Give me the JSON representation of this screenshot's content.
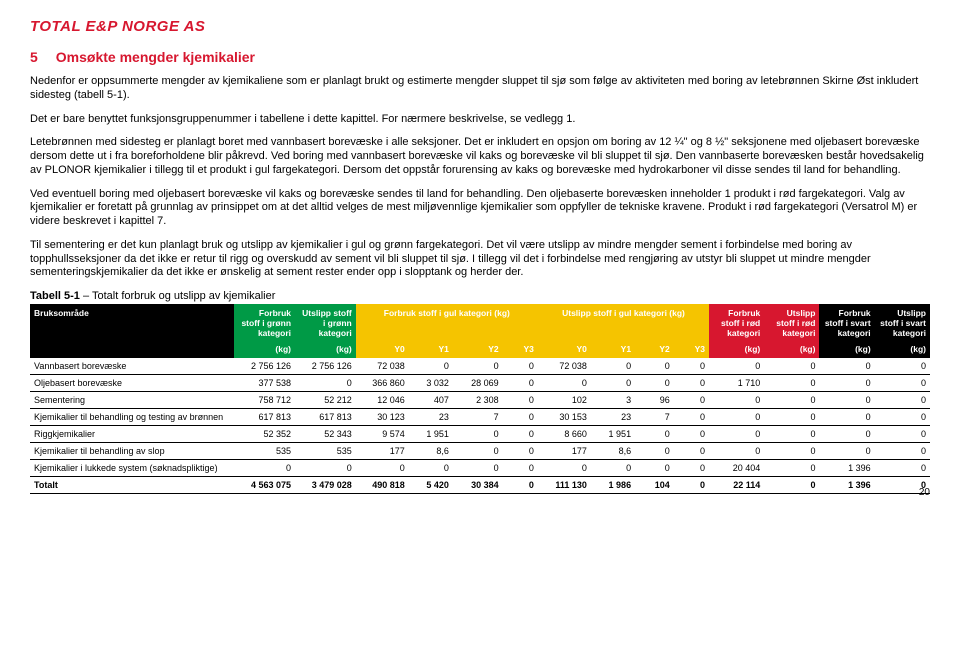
{
  "logo": "TOTAL E&P NORGE AS",
  "section": {
    "num": "5",
    "title": "Omsøkte mengder kjemikalier"
  },
  "paras": {
    "p1": "Nedenfor er oppsummerte mengder av kjemikaliene som er planlagt brukt og estimerte mengder sluppet til sjø som følge av aktiviteten med boring av letebrønnen Skirne Øst inkludert sidesteg (tabell 5-1).",
    "p2": "Det er bare benyttet funksjonsgruppenummer i tabellene i dette kapittel. For nærmere beskrivelse, se vedlegg 1.",
    "p3": "Letebrønnen med sidesteg er planlagt boret med vannbasert borevæske i alle seksjoner. Det er inkludert en opsjon om boring av 12 ¼\" og 8 ½\" seksjonene med oljebasert borevæske dersom dette ut i fra boreforholdene blir påkrevd. Ved boring med vannbasert borevæske vil kaks og borevæske vil bli sluppet til sjø. Den vannbaserte borevæsken består hovedsakelig av PLONOR kjemikalier i tillegg til et produkt i gul fargekategori. Dersom det oppstår forurensing av kaks og borevæske med hydrokarboner vil disse sendes til land for behandling.",
    "p4": "Ved eventuell boring med oljebasert borevæske vil kaks og borevæske sendes til land for behandling. Den oljebaserte borevæsken inneholder 1 produkt i rød fargekategori. Valg av kjemikalier er foretatt på grunnlag av prinsippet om at det alltid velges de mest miljøvennlige kjemikalier som oppfyller de tekniske kravene. Produkt i rød fargekategori (Versatrol M) er videre beskrevet i kapittel 7.",
    "p5": "Til sementering er det kun planlagt bruk og utslipp av kjemikalier i gul og grønn fargekategori. Det vil være utslipp av mindre mengder sement i forbindelse med boring av topphullsseksjoner da det ikke er retur til rigg og overskudd av sement vil bli sluppet til sjø. I tillegg vil det i forbindelse med rengjøring av utstyr bli sluppet ut mindre mengder sementeringskjemikalier da det ikke er ønskelig at sement rester ender opp i slopptank og herder der."
  },
  "tableCaption": {
    "label": "Tabell 5-1",
    "dash": " – ",
    "text": "Totalt forbruk og utslipp av kjemikalier"
  },
  "head": {
    "bruk": "Bruksområde",
    "g_forbruk": "Forbruk stoff i grønn kategori",
    "g_utslipp": "Utslipp stoff i grønn kategori",
    "gul_forbruk": "Forbruk stoff i gul kategori (kg)",
    "gul_utslipp": "Utslipp stoff i gul kategori (kg)",
    "r_forbruk": "Forbruk stoff i rød kategori",
    "r_utslipp": "Utslipp stoff i rød kategori",
    "s_forbruk": "Forbruk stoff i svart kategori",
    "s_utslipp": "Utslipp stoff i svart kategori",
    "kg": "(kg)",
    "y0": "Y0",
    "y1": "Y1",
    "y2": "Y2",
    "y3": "Y3"
  },
  "rows": [
    {
      "name": "Vannbasert borevæske",
      "gf": "2 756 126",
      "gu": "2 756 126",
      "yf0": "72 038",
      "yf1": "0",
      "yf2": "0",
      "yf3": "0",
      "yu0": "72 038",
      "yu1": "0",
      "yu2": "0",
      "yu3": "0",
      "rf": "0",
      "ru": "0",
      "sf": "0",
      "su": "0"
    },
    {
      "name": "Oljebasert borevæske",
      "gf": "377 538",
      "gu": "0",
      "yf0": "366 860",
      "yf1": "3 032",
      "yf2": "28 069",
      "yf3": "0",
      "yu0": "0",
      "yu1": "0",
      "yu2": "0",
      "yu3": "0",
      "rf": "1 710",
      "ru": "0",
      "sf": "0",
      "su": "0"
    },
    {
      "name": "Sementering",
      "gf": "758 712",
      "gu": "52 212",
      "yf0": "12 046",
      "yf1": "407",
      "yf2": "2 308",
      "yf3": "0",
      "yu0": "102",
      "yu1": "3",
      "yu2": "96",
      "yu3": "0",
      "rf": "0",
      "ru": "0",
      "sf": "0",
      "su": "0"
    },
    {
      "name": "Kjemikalier til behandling og testing av brønnen",
      "gf": "617 813",
      "gu": "617 813",
      "yf0": "30 123",
      "yf1": "23",
      "yf2": "7",
      "yf3": "0",
      "yu0": "30 153",
      "yu1": "23",
      "yu2": "7",
      "yu3": "0",
      "rf": "0",
      "ru": "0",
      "sf": "0",
      "su": "0"
    },
    {
      "name": "Riggkjemikalier",
      "gf": "52 352",
      "gu": "52 343",
      "yf0": "9 574",
      "yf1": "1 951",
      "yf2": "0",
      "yf3": "0",
      "yu0": "8 660",
      "yu1": "1 951",
      "yu2": "0",
      "yu3": "0",
      "rf": "0",
      "ru": "0",
      "sf": "0",
      "su": "0"
    },
    {
      "name": "Kjemikalier til behandling av slop",
      "gf": "535",
      "gu": "535",
      "yf0": "177",
      "yf1": "8,6",
      "yf2": "0",
      "yf3": "0",
      "yu0": "177",
      "yu1": "8,6",
      "yu2": "0",
      "yu3": "0",
      "rf": "0",
      "ru": "0",
      "sf": "0",
      "su": "0"
    },
    {
      "name": "Kjemikalier i lukkede system (søknadspliktige)",
      "gf": "0",
      "gu": "0",
      "yf0": "0",
      "yf1": "0",
      "yf2": "0",
      "yf3": "0",
      "yu0": "0",
      "yu1": "0",
      "yu2": "0",
      "yu3": "0",
      "rf": "20 404",
      "ru": "0",
      "sf": "1 396",
      "su": "0"
    },
    {
      "name": "Totalt",
      "gf": "4 563 075",
      "gu": "3 479 028",
      "yf0": "490 818",
      "yf1": "5 420",
      "yf2": "30 384",
      "yf3": "0",
      "yu0": "111 130",
      "yu1": "1 986",
      "yu2": "104",
      "yu3": "0",
      "rf": "22 114",
      "ru": "0",
      "sf": "1 396",
      "su": "0",
      "total": true
    }
  ],
  "pageNumber": "20",
  "colors": {
    "brand": "#d7172f",
    "green": "#009a46",
    "yellow": "#f5c400",
    "red": "#d7172f",
    "black": "#000000"
  }
}
